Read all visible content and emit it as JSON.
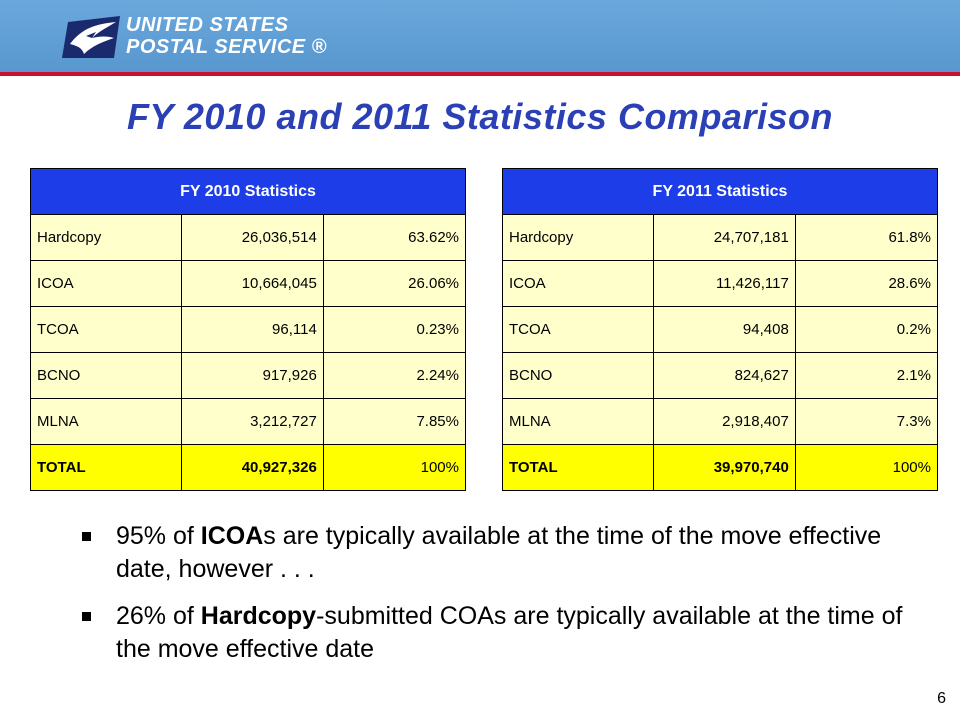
{
  "header": {
    "logo_line1": "UNITED STATES",
    "logo_line2": "POSTAL SERVICE ®"
  },
  "title": "FY 2010 and 2011 Statistics Comparison",
  "table2010": {
    "header": "FY 2010 Statistics",
    "rows": [
      [
        "Hardcopy",
        "26,036,514",
        "63.62%"
      ],
      [
        "ICOA",
        "10,664,045",
        "26.06%"
      ],
      [
        "TCOA",
        "96,114",
        "0.23%"
      ],
      [
        "BCNO",
        "917,926",
        "2.24%"
      ],
      [
        "MLNA",
        "3,212,727",
        "7.85%"
      ],
      [
        "TOTAL",
        "40,927,326",
        "100%"
      ]
    ]
  },
  "table2011": {
    "header": "FY 2011 Statistics",
    "rows": [
      [
        "Hardcopy",
        "24,707,181",
        "61.8%"
      ],
      [
        "ICOA",
        "11,426,117",
        "28.6%"
      ],
      [
        "TCOA",
        "94,408",
        "0.2%"
      ],
      [
        "BCNO",
        "824,627",
        "2.1%"
      ],
      [
        "MLNA",
        "2,918,407",
        "7.3%"
      ],
      [
        "TOTAL",
        "39,970,740",
        "100%"
      ]
    ]
  },
  "bullets": [
    {
      "pre": "95% of ",
      "bold": "ICOA",
      "post": "s are typically available at the time of the move effective date, however . . ."
    },
    {
      "pre": "26% of ",
      "bold": "Hardcopy",
      "post": "-submitted COAs are typically available at the time of the move effective date"
    }
  ],
  "page_number": "6",
  "colors": {
    "header_bg": "#5b9bd5",
    "header_rule": "#c8102e",
    "title": "#2b40b5",
    "table_header": "#1c3de8",
    "cell_bg": "#ffffcc",
    "total_bg": "#ffff00"
  }
}
